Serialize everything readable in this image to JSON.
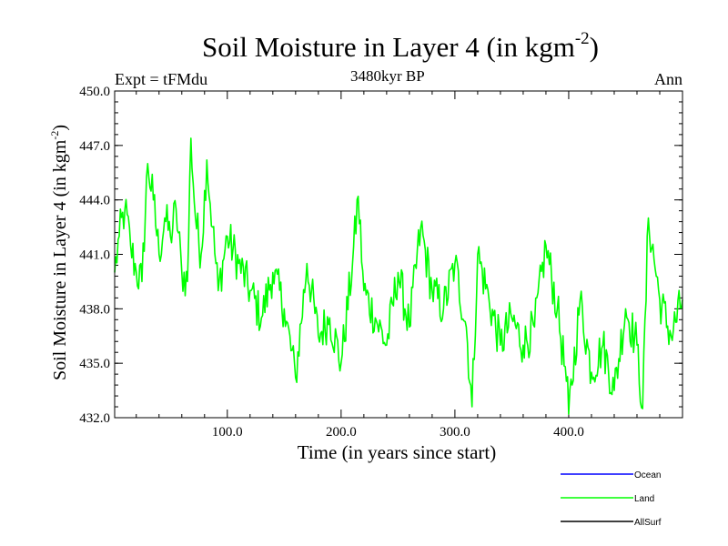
{
  "header": {
    "title_main": "Soil Moisture in Layer 4 (in kgm",
    "title_exp": "-2",
    "title_close": ")",
    "subtitle": "3480kyr BP",
    "expt_label": "Expt = tFMdu",
    "season": "Ann"
  },
  "chart_data": {
    "type": "line",
    "title": "Soil Moisture in Layer 4 (in kgm-2)",
    "xlabel": "Time (in years since start)",
    "ylabel_main": "Soil Moisture in Layer 4 (in kgm",
    "ylabel_exp": "-2",
    "ylabel_close": ")",
    "xlim": [
      1,
      500
    ],
    "ylim": [
      432.0,
      450.0
    ],
    "xticks": [
      100,
      200,
      300,
      400
    ],
    "xtick_labels": [
      "100.0",
      "200.0",
      "300.0",
      "400.0"
    ],
    "yticks": [
      432,
      435,
      438,
      441,
      444,
      447,
      450
    ],
    "ytick_labels": [
      "432.0",
      "435.0",
      "438.0",
      "441.0",
      "444.0",
      "447.0",
      "450.0"
    ],
    "legend": [
      {
        "name": "Ocean",
        "color": "#0000ff"
      },
      {
        "name": "Land",
        "color": "#00ff00"
      },
      {
        "name": "AllSurf",
        "color": "#000000"
      }
    ],
    "series": [
      {
        "name": "Land",
        "color": "#00ff00",
        "x": [
          1,
          5,
          10,
          15,
          20,
          25,
          30,
          35,
          40,
          45,
          50,
          55,
          60,
          65,
          68,
          72,
          77,
          82,
          87,
          92,
          100,
          110,
          120,
          130,
          140,
          150,
          160,
          170,
          180,
          190,
          200,
          210,
          215,
          220,
          230,
          240,
          250,
          260,
          270,
          280,
          290,
          300,
          310,
          315,
          320,
          330,
          340,
          350,
          360,
          370,
          380,
          390,
          398,
          400,
          410,
          420,
          430,
          440,
          450,
          460,
          465,
          470,
          480,
          490,
          500
        ],
        "values": [
          440.0,
          442.0,
          443.5,
          441.5,
          440.0,
          439.5,
          446.0,
          444.0,
          441.0,
          443.0,
          442.0,
          443.5,
          440.0,
          439.5,
          447.4,
          443.0,
          441.0,
          446.2,
          442.5,
          439.0,
          442.0,
          440.5,
          439.0,
          437.5,
          440.0,
          438.0,
          434.2,
          440.5,
          436.5,
          437.5,
          435.0,
          440.5,
          444.2,
          439.0,
          437.5,
          436.0,
          440.0,
          437.0,
          442.5,
          439.0,
          438.0,
          440.5,
          437.0,
          432.6,
          441.0,
          438.5,
          436.0,
          437.5,
          436.0,
          437.0,
          441.5,
          438.0,
          434.0,
          432.2,
          438.5,
          434.5,
          436.0,
          433.5,
          438.0,
          436.0,
          432.5,
          443.0,
          438.5,
          436.5,
          438.5
        ]
      }
    ]
  }
}
